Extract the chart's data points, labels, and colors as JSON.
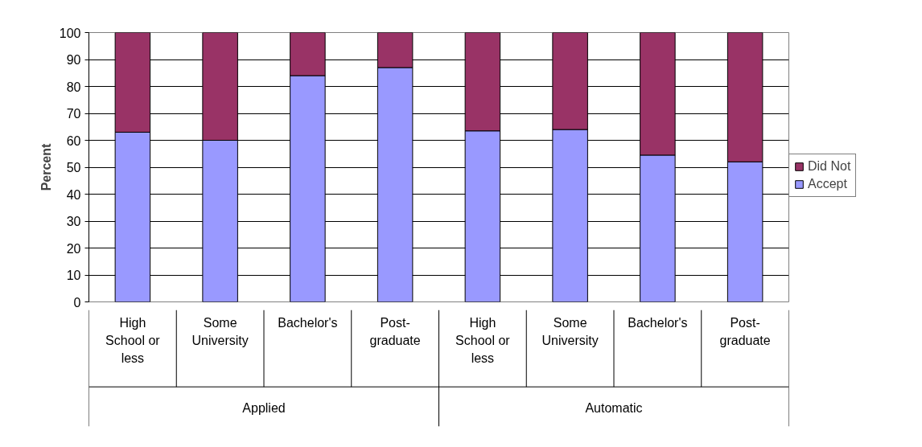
{
  "chart_data": {
    "type": "bar",
    "stacked": true,
    "ylabel": "Percent",
    "categories": [
      "High School or less",
      "Some University",
      "Bachelor's",
      "Post-graduate",
      "High School or less",
      "Some University",
      "Bachelor's",
      "Post-graduate"
    ],
    "series": [
      {
        "name": "Accept",
        "color": "#9999ff",
        "values": [
          63,
          60,
          84,
          87,
          63.5,
          64,
          54.5,
          52
        ]
      },
      {
        "name": "Did Not",
        "color": "#993366",
        "values": [
          37,
          40,
          16,
          13,
          36.5,
          36,
          45.5,
          48
        ]
      }
    ],
    "annotations": [
      "Applied",
      "Automatic"
    ],
    "ylim": [
      0,
      100
    ],
    "yticks": [
      0,
      10,
      20,
      30,
      40,
      50,
      60,
      70,
      80,
      90,
      100
    ],
    "grid": "y",
    "legend": "right"
  }
}
